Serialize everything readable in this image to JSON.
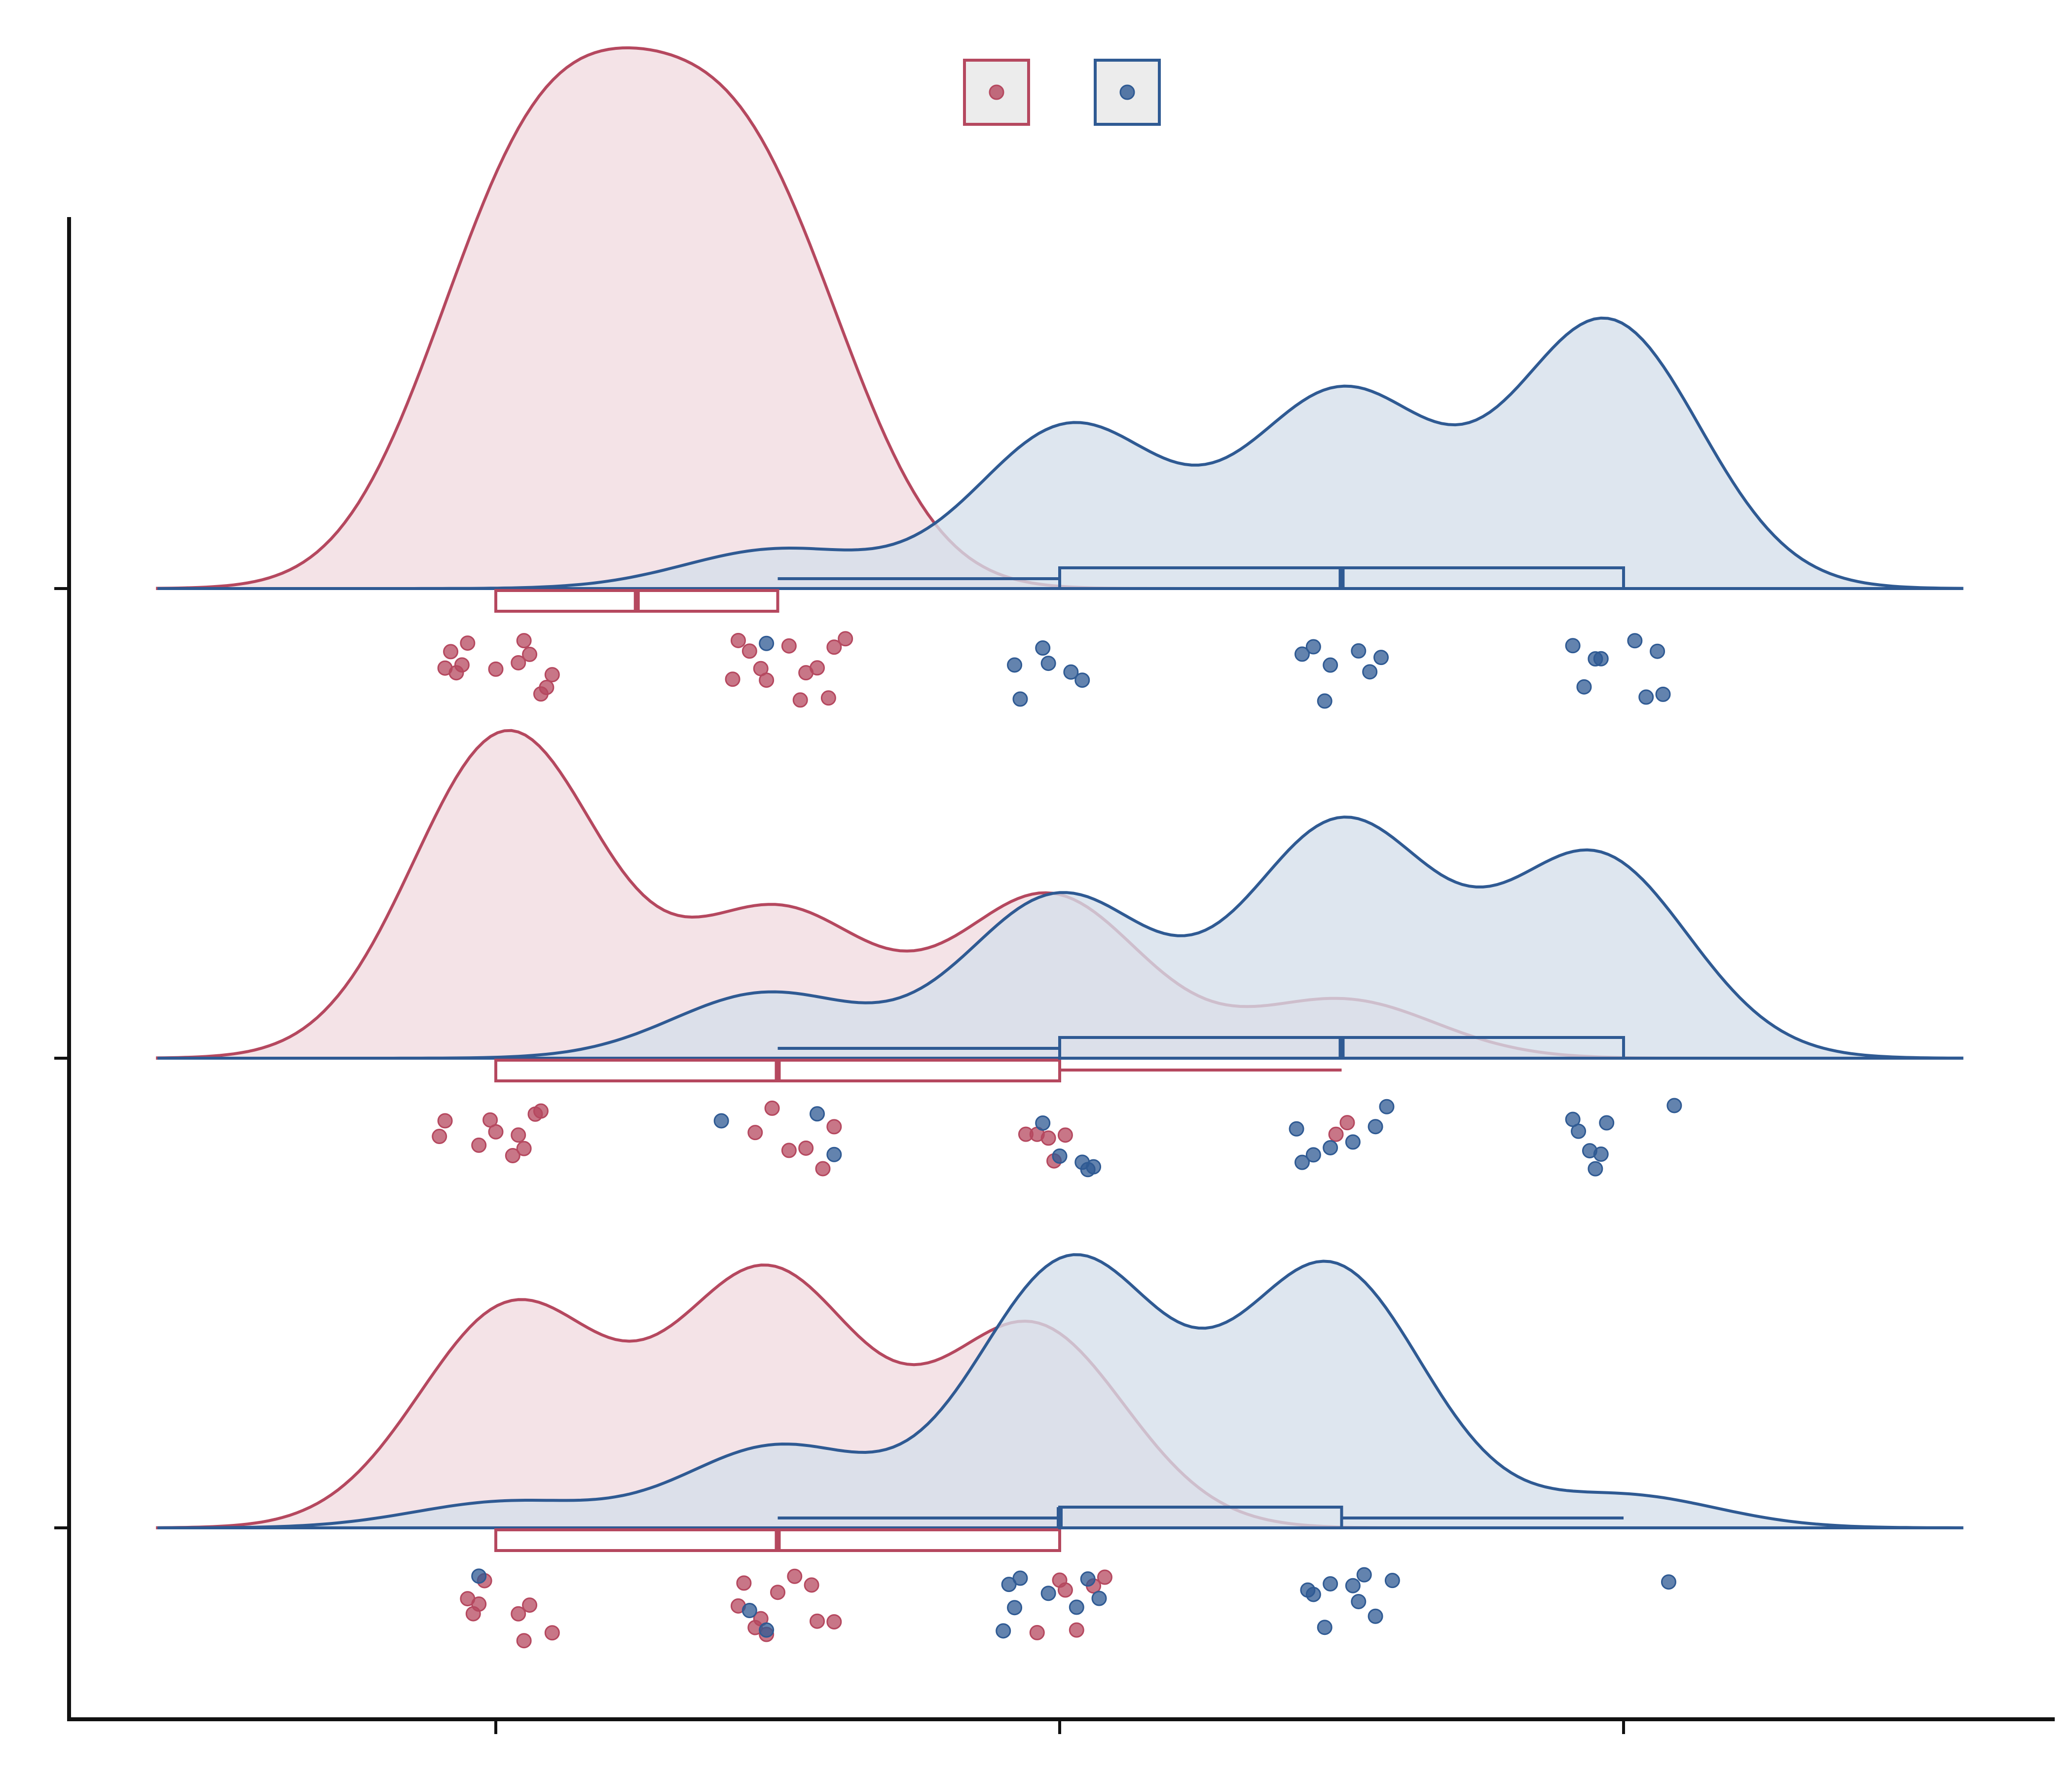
{
  "chart_data": {
    "type": "raincloud",
    "title": "",
    "xlabel": "",
    "ylabel": "",
    "orientation": "horizontal",
    "xlim": [
      -0.6,
      2.6
    ],
    "x_ticks": [
      0,
      0.5,
      1,
      1.5,
      2
    ],
    "x_tick_marks": [
      0,
      1,
      2
    ],
    "groups": 3,
    "legend": {
      "placement": "top-center",
      "frame": false
    },
    "grid": false,
    "series": [
      {
        "key": "red",
        "color": "#b5485f",
        "fill": "#f1dbe0",
        "density_peaks": [
          [
            [
              0.03,
              1.0
            ],
            [
              0.48,
              1.0
            ],
            [
              0.25,
              0.87
            ]
          ],
          [
            [
              0.02,
              1.0
            ],
            [
              0.5,
              0.45
            ],
            [
              0.98,
              0.5
            ],
            [
              1.5,
              0.18
            ]
          ],
          [
            [
              0.03,
              0.68
            ],
            [
              0.48,
              0.78
            ],
            [
              0.95,
              0.62
            ]
          ]
        ],
        "box": [
          {
            "q1": 0.0,
            "median": 0.25,
            "q3": 0.5,
            "whisker_low": 0.0,
            "whisker_high": 0.5
          },
          {
            "q1": 0.0,
            "median": 0.5,
            "q3": 1.0,
            "whisker_low": 0.0,
            "whisker_high": 1.5
          },
          {
            "q1": 0.0,
            "median": 0.5,
            "q3": 1.0,
            "whisker_low": 0.0,
            "whisker_high": 1.0
          }
        ],
        "points": [
          [
            -0.09,
            -0.07,
            -0.05,
            -0.08,
            -0.06,
            0.0,
            0.05,
            0.08,
            0.1,
            0.04,
            0.06,
            0.09,
            0.42,
            0.43,
            0.47,
            0.45,
            0.48,
            0.52,
            0.55,
            0.57,
            0.6,
            0.62,
            0.59,
            0.54
          ],
          [
            -0.1,
            -0.09,
            -0.03,
            0.0,
            0.03,
            0.05,
            0.07,
            -0.01,
            0.04,
            0.08,
            0.49,
            0.46,
            0.52,
            0.55,
            0.58,
            0.6,
            0.94,
            0.98,
            0.96,
            0.99,
            1.01,
            1.49,
            1.51
          ],
          [
            -0.05,
            -0.04,
            -0.03,
            -0.02,
            0.05,
            0.06,
            0.1,
            0.04,
            0.43,
            0.44,
            0.46,
            0.48,
            0.5,
            0.53,
            0.56,
            0.6,
            0.57,
            0.47,
            0.96,
            1.01,
            1.03,
            1.06,
            1.08,
            1.0
          ]
        ]
      },
      {
        "key": "blue",
        "color": "#2f5a93",
        "fill": "#d5dfea",
        "density_peaks": [
          [
            [
              0.5,
              0.12
            ],
            [
              1.02,
              0.5
            ],
            [
              1.5,
              0.6
            ],
            [
              1.97,
              0.82
            ]
          ],
          [
            [
              0.48,
              0.2
            ],
            [
              1.0,
              0.5
            ],
            [
              1.5,
              0.72
            ],
            [
              1.95,
              0.62
            ]
          ],
          [
            [
              0.02,
              0.08
            ],
            [
              0.5,
              0.25
            ],
            [
              1.02,
              0.82
            ],
            [
              1.48,
              0.8
            ],
            [
              2.0,
              0.1
            ]
          ]
        ],
        "box": [
          {
            "q1": 1.0,
            "median": 1.5,
            "q3": 2.0,
            "whisker_low": 0.5,
            "whisker_high": 2.0
          },
          {
            "q1": 1.0,
            "median": 1.5,
            "q3": 2.0,
            "whisker_low": 0.5,
            "whisker_high": 2.0
          },
          {
            "q1": 1.0,
            "median": 1.0,
            "q3": 1.5,
            "whisker_low": 0.5,
            "whisker_high": 2.0
          }
        ],
        "points": [
          [
            0.48,
            0.92,
            0.93,
            0.97,
            0.98,
            1.02,
            1.04,
            1.43,
            1.45,
            1.47,
            1.48,
            1.53,
            1.55,
            1.57,
            1.91,
            1.93,
            1.95,
            1.96,
            2.02,
            2.04,
            2.06,
            2.07
          ],
          [
            0.4,
            0.6,
            0.57,
            0.97,
            1.0,
            1.04,
            1.05,
            1.06,
            1.43,
            1.45,
            1.48,
            1.52,
            1.58,
            1.56,
            1.42,
            1.91,
            1.92,
            1.94,
            1.96,
            1.97,
            1.95,
            2.09
          ],
          [
            -0.03,
            0.45,
            0.48,
            0.9,
            0.91,
            0.92,
            0.93,
            0.98,
            1.03,
            1.05,
            1.07,
            1.44,
            1.45,
            1.47,
            1.48,
            1.52,
            1.54,
            1.56,
            1.59,
            1.53,
            2.08
          ]
        ]
      }
    ]
  }
}
